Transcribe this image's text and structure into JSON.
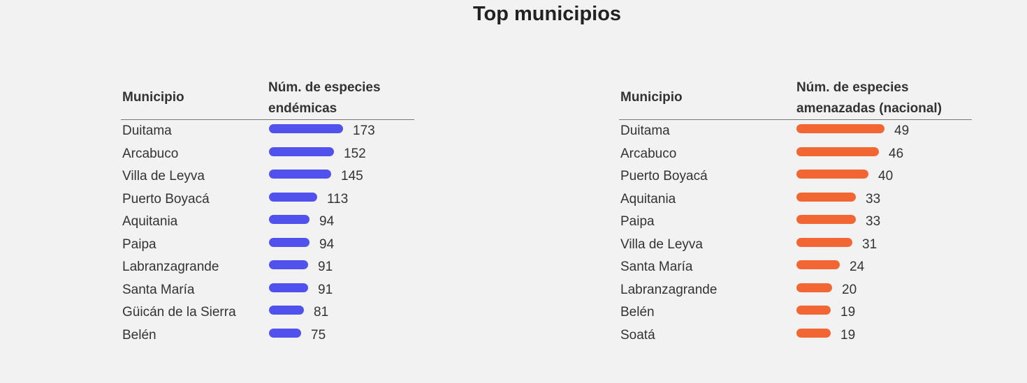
{
  "page": {
    "title": "Top municipios"
  },
  "chart_data": [
    {
      "type": "bar",
      "orientation": "horizontal",
      "column_header_category": "Municipio",
      "column_header_value_lines": [
        "Núm. de especies",
        "endémicas"
      ],
      "color": "#5152ee",
      "xlim": [
        0,
        173
      ],
      "categories": [
        "Duitama",
        "Arcabuco",
        "Villa de Leyva",
        "Puerto Boyacá",
        "Aquitania",
        "Paipa",
        "Labranzagrande",
        "Santa María",
        "Güicán de la Sierra",
        "Belén"
      ],
      "values": [
        173,
        152,
        145,
        113,
        94,
        94,
        91,
        91,
        81,
        75
      ]
    },
    {
      "type": "bar",
      "orientation": "horizontal",
      "column_header_category": "Municipio",
      "column_header_value_lines": [
        "Núm. de especies",
        "amenazadas (nacional)"
      ],
      "color": "#f26634",
      "xlim": [
        0,
        49
      ],
      "categories": [
        "Duitama",
        "Arcabuco",
        "Puerto Boyacá",
        "Aquitania",
        "Paipa",
        "Villa de Leyva",
        "Santa María",
        "Labranzagrande",
        "Belén",
        "Soatá"
      ],
      "values": [
        49,
        46,
        40,
        33,
        33,
        31,
        24,
        20,
        19,
        19
      ]
    }
  ]
}
